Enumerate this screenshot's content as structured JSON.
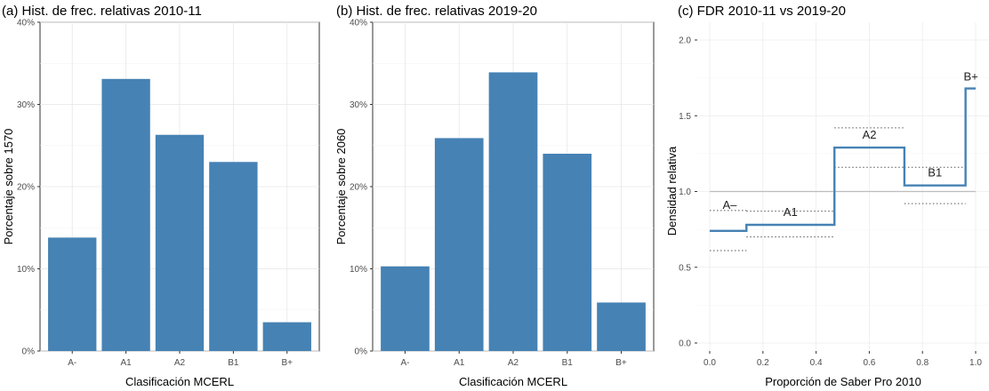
{
  "chart_data": [
    {
      "type": "bar",
      "title": "(a) Hist. de frec. relativas 2010-11",
      "xlabel": "Clasificación MCERL",
      "ylabel": "Porcentaje sobre  1570",
      "categories": [
        "A-",
        "A1",
        "A2",
        "B1",
        "B+"
      ],
      "values": [
        13.8,
        33.1,
        26.3,
        23.0,
        3.5
      ],
      "ylim": [
        0,
        40
      ],
      "yticks": [
        0,
        10,
        20,
        30,
        40
      ],
      "ytick_labels": [
        "0%",
        "10%",
        "20%",
        "30%",
        "40%"
      ],
      "grid": true,
      "bar_color": "#4682b4"
    },
    {
      "type": "bar",
      "title": "(b) Hist. de frec. relativas 2019-20",
      "xlabel": "Clasificación MCERL",
      "ylabel": "Porcentaje sobre  2060",
      "categories": [
        "A-",
        "A1",
        "A2",
        "B1",
        "B+"
      ],
      "values": [
        10.3,
        25.9,
        33.9,
        24.0,
        5.9
      ],
      "ylim": [
        0,
        40
      ],
      "yticks": [
        0,
        10,
        20,
        30,
        40
      ],
      "ytick_labels": [
        "0%",
        "10%",
        "20%",
        "30%",
        "40%"
      ],
      "grid": true,
      "bar_color": "#4682b4"
    },
    {
      "type": "line",
      "subtype": "step",
      "title": "(c) FDR 2010-11 vs 2019-20",
      "xlabel": "Proporción de Saber Pro 2010",
      "ylabel": "Densidad relativa",
      "xlim": [
        0,
        1
      ],
      "ylim": [
        0,
        2
      ],
      "xticks": [
        0.0,
        0.2,
        0.4,
        0.6,
        0.8,
        1.0
      ],
      "xtick_labels": [
        "0.0",
        "0.2",
        "0.4",
        "0.6",
        "0.8",
        "1.0"
      ],
      "yticks": [
        0.0,
        0.5,
        1.0,
        1.5,
        2.0
      ],
      "ytick_labels": [
        "0.0",
        "0.5",
        "1.0",
        "1.5",
        "2.0"
      ],
      "reference_line": 1.0,
      "line_color": "#4682b4",
      "segments": [
        {
          "label": "A–",
          "x0": 0.0,
          "x1": 0.138,
          "y": 0.74,
          "ci": [
            0.61,
            0.875
          ]
        },
        {
          "label": "A1",
          "x0": 0.138,
          "x1": 0.469,
          "y": 0.78,
          "ci": [
            0.7,
            0.87
          ]
        },
        {
          "label": "A2",
          "x0": 0.469,
          "x1": 0.732,
          "y": 1.29,
          "ci": [
            1.16,
            1.42
          ]
        },
        {
          "label": "B1",
          "x0": 0.732,
          "x1": 0.962,
          "y": 1.04,
          "ci": [
            0.92,
            1.16
          ]
        },
        {
          "label": "B+",
          "x0": 0.962,
          "x1": 1.0,
          "y": 1.68,
          "ci": []
        }
      ]
    }
  ]
}
